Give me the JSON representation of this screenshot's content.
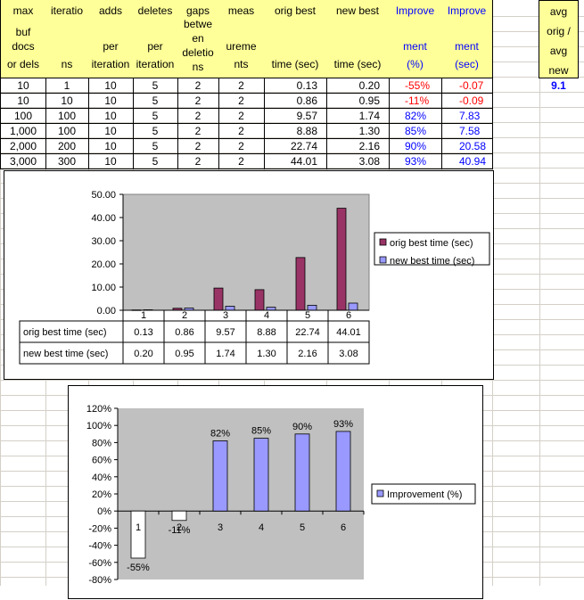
{
  "sheet": {
    "headers": [
      {
        "lines": [
          "max",
          "buf",
          "docs",
          "or dels"
        ],
        "color": "black"
      },
      {
        "lines": [
          "iteratio",
          "",
          "",
          "ns"
        ],
        "color": "black"
      },
      {
        "lines": [
          "adds",
          "",
          "per",
          "iteration"
        ],
        "color": "black"
      },
      {
        "lines": [
          "deletes",
          "",
          "per",
          "iteration"
        ],
        "color": "black"
      },
      {
        "lines": [
          "gaps",
          "betwe",
          "en",
          "deletio",
          "ns"
        ],
        "color": "black"
      },
      {
        "lines": [
          "meas",
          "",
          "ureme",
          "nts"
        ],
        "color": "black"
      },
      {
        "lines": [
          "orig best",
          "",
          "",
          "time (sec)"
        ],
        "color": "black"
      },
      {
        "lines": [
          "new best",
          "",
          "",
          "time (sec)"
        ],
        "color": "black"
      },
      {
        "lines": [
          "Improve",
          "",
          "ment",
          "(%)"
        ],
        "color": "blue"
      },
      {
        "lines": [
          "Improve",
          "",
          "ment",
          "(sec)"
        ],
        "color": "blue"
      }
    ],
    "avg_header": [
      "avg",
      "orig /",
      "avg",
      "new"
    ],
    "avg_value": "9.1",
    "rows": [
      [
        "10",
        "1",
        "10",
        "5",
        "2",
        "2",
        "0.13",
        "0.20",
        "-55%",
        "-0.07"
      ],
      [
        "10",
        "10",
        "10",
        "5",
        "2",
        "2",
        "0.86",
        "0.95",
        "-11%",
        "-0.09"
      ],
      [
        "100",
        "100",
        "10",
        "5",
        "2",
        "2",
        "9.57",
        "1.74",
        "82%",
        "7.83"
      ],
      [
        "1,000",
        "100",
        "10",
        "5",
        "2",
        "2",
        "8.88",
        "1.30",
        "85%",
        "7.58"
      ],
      [
        "2,000",
        "200",
        "10",
        "5",
        "2",
        "2",
        "22.74",
        "2.16",
        "90%",
        "20.58"
      ],
      [
        "3,000",
        "300",
        "10",
        "5",
        "2",
        "2",
        "44.01",
        "3.08",
        "93%",
        "40.94"
      ]
    ]
  },
  "colors": {
    "header_fill": "#ffff99",
    "plot_area": "#c0c0c0",
    "orig_bar": "#993366",
    "new_bar": "#9999ff",
    "negative_bar": "#ffffff",
    "negative_text": "#ff0000",
    "positive_text": "#0000ff"
  },
  "chart_data": [
    {
      "type": "bar",
      "categories": [
        "1",
        "2",
        "3",
        "4",
        "5",
        "6"
      ],
      "series": [
        {
          "name": "orig best time (sec)",
          "values": [
            0.13,
            0.86,
            9.57,
            8.88,
            22.74,
            44.01
          ],
          "labels": [
            "0.13",
            "0.86",
            "9.57",
            "8.88",
            "22.74",
            "44.01"
          ]
        },
        {
          "name": "new best time (sec)",
          "values": [
            0.2,
            0.95,
            1.74,
            1.3,
            2.16,
            3.08
          ],
          "labels": [
            "0.20",
            "0.95",
            "1.74",
            "1.30",
            "2.16",
            "3.08"
          ]
        }
      ],
      "y_ticks": [
        "50.00",
        "40.00",
        "30.00",
        "20.00",
        "10.00",
        "0.00"
      ],
      "ylim": [
        0,
        50
      ],
      "grid": false,
      "legend": "right",
      "data_table": true
    },
    {
      "type": "bar",
      "categories": [
        "1",
        "2",
        "3",
        "4",
        "5",
        "6"
      ],
      "series": [
        {
          "name": "Improvement  (%)",
          "values": [
            -55,
            -11,
            82,
            85,
            90,
            93
          ],
          "labels": [
            "-55%",
            "-11%",
            "82%",
            "85%",
            "90%",
            "93%"
          ]
        }
      ],
      "y_ticks": [
        "120%",
        "100%",
        "80%",
        "60%",
        "40%",
        "20%",
        "0%",
        "-20%",
        "-40%",
        "-60%",
        "-80%"
      ],
      "ylim": [
        -80,
        120
      ],
      "grid": false,
      "legend": "right"
    }
  ]
}
